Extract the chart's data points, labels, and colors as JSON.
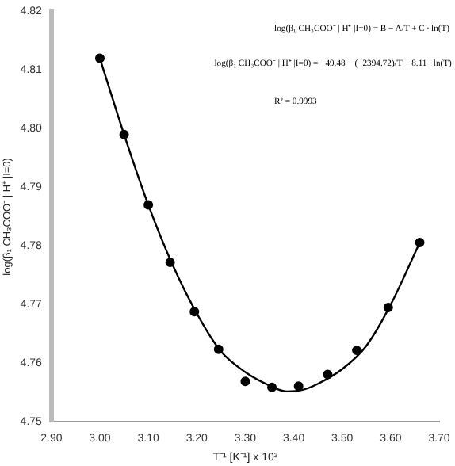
{
  "chart_data": {
    "type": "scatter",
    "xlabel": "T⁻¹ [K⁻¹] x 10³",
    "ylabel": "log(β₁ CH₃COO⁻ | H⁺ |I=0)",
    "annotations": [
      "log(β₁ CH₃COO⁻ | H⁺ |I=0) = B − A/T + C ∙ ln(T)",
      "log(β₁ CH₃COO⁻ | H⁺ |I=0) = −49.48 − (−2394.72)/T + 8.11 ∙ ln(T)",
      "R² = 0.9993"
    ],
    "series": [
      {
        "color": "#000000",
        "marker": "circle",
        "x": [
          3.0,
          3.05,
          3.1,
          3.145,
          3.195,
          3.245,
          3.3,
          3.355,
          3.41,
          3.47,
          3.53,
          3.595,
          3.66
        ],
        "values": [
          4.812,
          4.799,
          4.787,
          4.7772,
          4.7688,
          4.7624,
          4.7569,
          4.7559,
          4.7561,
          4.7581,
          4.7622,
          4.7695,
          4.7806
        ]
      },
      {
        "type": "line",
        "color": "#000000",
        "marker": "none",
        "x": [
          3.0,
          3.05,
          3.1,
          3.15,
          3.2,
          3.25,
          3.3,
          3.35,
          3.385,
          3.42,
          3.45,
          3.5,
          3.55,
          3.6,
          3.66
        ],
        "values": [
          4.812,
          4.799,
          4.787,
          4.7768,
          4.7685,
          4.762,
          4.7585,
          4.7562,
          4.7552,
          4.7555,
          4.7565,
          4.759,
          4.763,
          4.77,
          4.7806
        ]
      }
    ],
    "xlim": [
      2.9,
      3.7
    ],
    "xticks": [
      {
        "value": 2.9,
        "label": "2.90"
      },
      {
        "value": 3.0,
        "label": "3.00"
      },
      {
        "value": 3.1,
        "label": "3.10"
      },
      {
        "value": 3.2,
        "label": "3.20"
      },
      {
        "value": 3.3,
        "label": "3.30"
      },
      {
        "value": 3.4,
        "label": "3.40"
      },
      {
        "value": 3.5,
        "label": "3.50"
      },
      {
        "value": 3.6,
        "label": "3.60"
      },
      {
        "value": 3.7,
        "label": "3.70"
      }
    ],
    "ylim": [
      4.75,
      4.82
    ],
    "yticks": [
      {
        "value": 4.75,
        "label": "4.75"
      },
      {
        "value": 4.76,
        "label": "4.76"
      },
      {
        "value": 4.77,
        "label": "4.77"
      },
      {
        "value": 4.78,
        "label": "4.78"
      },
      {
        "value": 4.79,
        "label": "4.79"
      },
      {
        "value": 4.8,
        "label": "4.80"
      },
      {
        "value": 4.81,
        "label": "4.81"
      },
      {
        "value": 4.82,
        "label": "4.82"
      }
    ],
    "grid": false,
    "legend": false
  }
}
